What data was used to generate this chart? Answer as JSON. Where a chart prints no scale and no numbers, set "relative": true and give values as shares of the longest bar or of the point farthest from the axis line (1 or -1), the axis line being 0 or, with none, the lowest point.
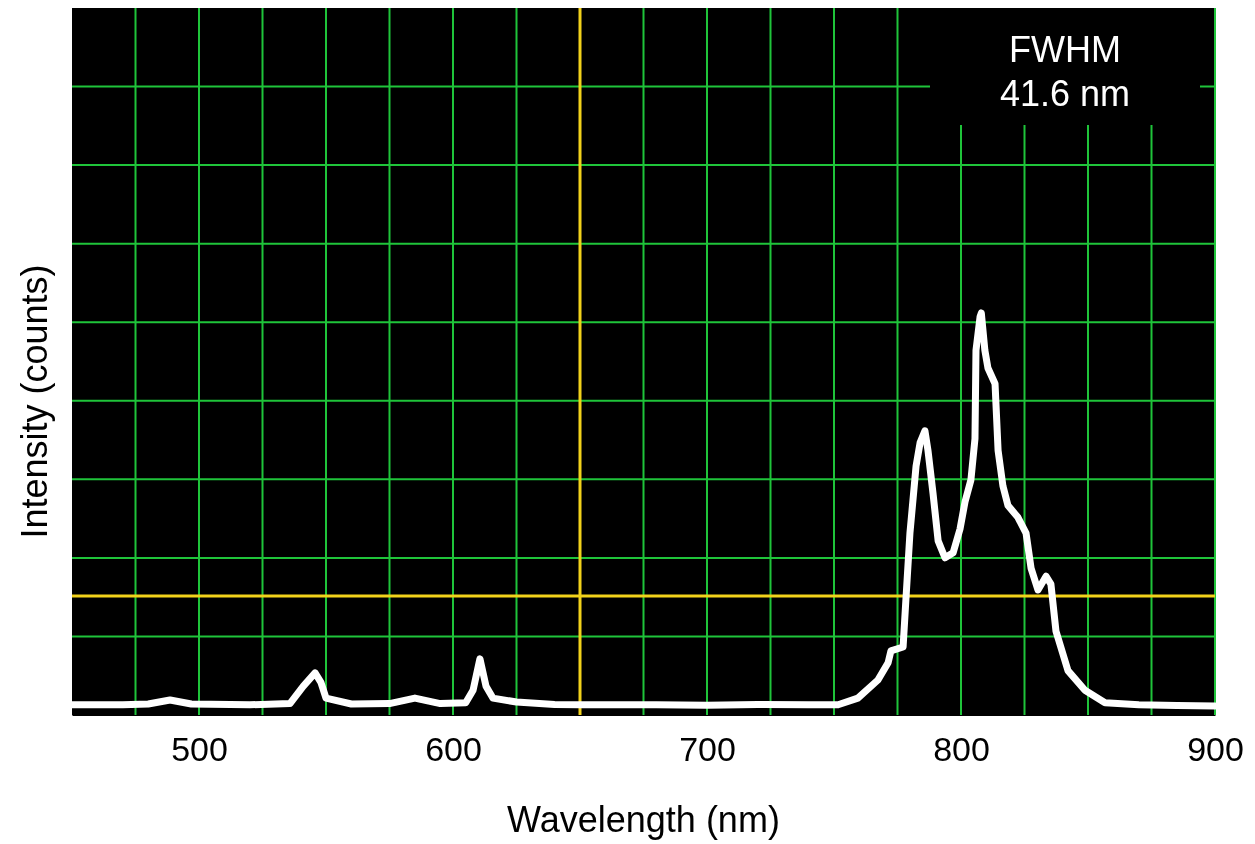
{
  "chart_data": {
    "type": "line",
    "xlabel": "Wavelength (nm)",
    "ylabel": "Intensity (counts)",
    "relative": true,
    "xlim": [
      450,
      900
    ],
    "xticks": [
      {
        "value": 475,
        "label": null
      },
      500,
      {
        "value": 525,
        "label": null
      },
      {
        "value": 550,
        "label": null
      },
      {
        "value": 575,
        "label": null
      },
      600,
      {
        "value": 625,
        "label": null
      },
      {
        "value": 650,
        "label": null
      },
      {
        "value": 675,
        "label": null
      },
      700,
      {
        "value": 725,
        "label": null
      },
      {
        "value": 750,
        "label": null
      },
      {
        "value": 775,
        "label": null
      },
      800,
      {
        "value": 825,
        "label": null
      },
      {
        "value": 850,
        "label": null
      },
      {
        "value": 875,
        "label": null
      },
      900
    ],
    "grid": true,
    "marker": "none",
    "line_style": "solid",
    "series": [
      {
        "color": "#ffffff",
        "x": [
          450,
          470,
          480,
          488.6,
          497,
          520,
          535.8,
          541,
          545.7,
          548,
          550,
          560,
          575,
          585,
          595,
          605,
          607.9,
          610.6,
          613,
          615.7,
          625,
          640,
          650,
          680,
          700,
          720,
          740,
          751.6,
          759.4,
          767.3,
          771.3,
          772.4,
          777.2,
          778.3,
          779.9,
          782.3,
          783.9,
          785.8,
          787,
          789,
          791,
          793.7,
          796.9,
          799.6,
          801.6,
          803.9,
          805.5,
          805.9,
          807.5,
          808,
          809.4,
          810.6,
          813.4,
          814.6,
          816.5,
          818.5,
          822.4,
          825.6,
          827.6,
          830.3,
          833.5,
          835.4,
          837.4,
          842.1,
          848.8,
          856.7,
          870,
          885,
          900
        ],
        "values": [
          0.003,
          0.003,
          0.005,
          0.015,
          0.005,
          0.003,
          0.006,
          0.05,
          0.084,
          0.06,
          0.02,
          0.005,
          0.006,
          0.02,
          0.006,
          0.008,
          0.04,
          0.12,
          0.05,
          0.02,
          0.01,
          0.004,
          0.003,
          0.003,
          0.002,
          0.004,
          0.003,
          0.003,
          0.02,
          0.066,
          0.11,
          0.14,
          0.15,
          0.27,
          0.44,
          0.61,
          0.67,
          0.7,
          0.65,
          0.54,
          0.42,
          0.377,
          0.39,
          0.45,
          0.52,
          0.575,
          0.68,
          0.905,
          0.99,
          1.0,
          0.905,
          0.86,
          0.82,
          0.65,
          0.56,
          0.51,
          0.48,
          0.44,
          0.35,
          0.295,
          0.33,
          0.31,
          0.19,
          0.09,
          0.04,
          0.008,
          0.003,
          0.001,
          0.0
        ]
      }
    ],
    "ref_lines": [
      {
        "axis": "x",
        "value": 650,
        "color": "#f2d21b"
      },
      {
        "axis": "y",
        "value": 0.28,
        "color": "#f2d21b"
      }
    ],
    "annotations": [
      "FWHM\n41.6 nm"
    ]
  }
}
